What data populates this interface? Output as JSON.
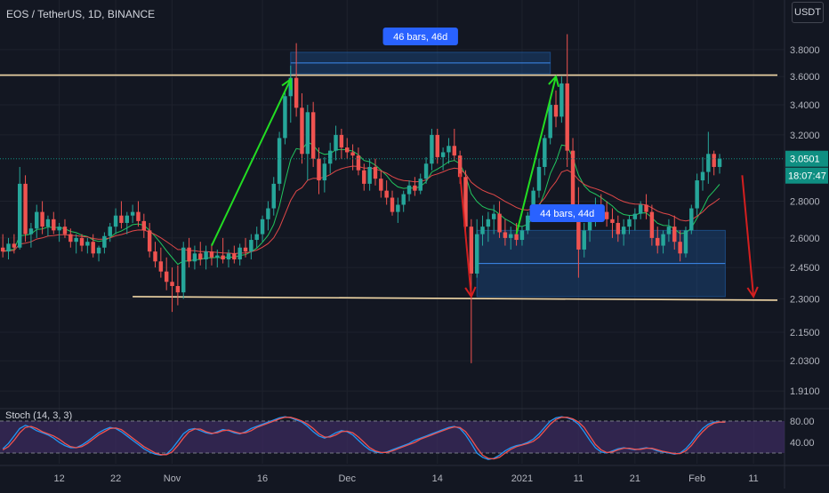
{
  "header": {
    "title": "EOS / TetherUS, 1D, BINANCE"
  },
  "currency_label": "USDT",
  "indicator": {
    "label": "Stoch (14, 3, 3)"
  },
  "colors": {
    "background": "#131722",
    "grid": "#1e222d",
    "text": "#b2b5be",
    "up": "#26a69a",
    "down": "#ef5350",
    "trendline": "#f2d8a7",
    "range_box": "#1e5aa0",
    "arrow_up": "#22dd22",
    "arrow_down": "#d41f1f",
    "price_tag": "#0f8f82",
    "stoch_k": "#2196f3",
    "stoch_d": "#ef5350",
    "stoch_band": "#3b2b5e"
  },
  "chart_data": [
    {
      "type": "candlestick",
      "title": "EOS / TetherUS, 1D, BINANCE",
      "y_scale": "log",
      "ylim": [
        1.85,
        4.2
      ],
      "y_ticks": [
        "3.8000",
        "3.6000",
        "3.4000",
        "3.2000",
        "2.8000",
        "2.6000",
        "2.4500",
        "2.3000",
        "2.1500",
        "2.0300",
        "1.9100"
      ],
      "x_ticks": [
        "12",
        "22",
        "Nov",
        "16",
        "Dec",
        "14",
        "2021",
        "11",
        "21",
        "Feb",
        "11"
      ],
      "x_tick_bar_index": [
        10,
        20,
        30,
        46,
        61,
        77,
        92,
        102,
        112,
        123,
        133
      ],
      "x_range_bars": [
        0,
        139
      ],
      "candles_ohlc": [
        [
          2.55,
          2.62,
          2.5,
          2.53
        ],
        [
          2.53,
          2.6,
          2.49,
          2.57
        ],
        [
          2.57,
          2.62,
          2.52,
          2.55
        ],
        [
          2.55,
          3.0,
          2.54,
          2.9
        ],
        [
          2.9,
          2.95,
          2.58,
          2.62
        ],
        [
          2.62,
          2.68,
          2.55,
          2.65
        ],
        [
          2.65,
          2.78,
          2.6,
          2.74
        ],
        [
          2.74,
          2.8,
          2.62,
          2.66
        ],
        [
          2.66,
          2.72,
          2.61,
          2.7
        ],
        [
          2.7,
          2.74,
          2.62,
          2.64
        ],
        [
          2.64,
          2.68,
          2.58,
          2.66
        ],
        [
          2.66,
          2.7,
          2.6,
          2.62
        ],
        [
          2.62,
          2.65,
          2.55,
          2.58
        ],
        [
          2.58,
          2.62,
          2.52,
          2.6
        ],
        [
          2.6,
          2.62,
          2.53,
          2.56
        ],
        [
          2.56,
          2.6,
          2.52,
          2.58
        ],
        [
          2.58,
          2.62,
          2.5,
          2.52
        ],
        [
          2.52,
          2.56,
          2.48,
          2.55
        ],
        [
          2.55,
          2.63,
          2.52,
          2.61
        ],
        [
          2.61,
          2.68,
          2.58,
          2.66
        ],
        [
          2.66,
          2.76,
          2.62,
          2.72
        ],
        [
          2.72,
          2.8,
          2.65,
          2.68
        ],
        [
          2.68,
          2.74,
          2.62,
          2.72
        ],
        [
          2.72,
          2.78,
          2.68,
          2.74
        ],
        [
          2.74,
          2.8,
          2.66,
          2.69
        ],
        [
          2.69,
          2.73,
          2.6,
          2.64
        ],
        [
          2.64,
          2.68,
          2.5,
          2.53
        ],
        [
          2.53,
          2.58,
          2.45,
          2.48
        ],
        [
          2.48,
          2.55,
          2.4,
          2.43
        ],
        [
          2.43,
          2.5,
          2.34,
          2.38
        ],
        [
          2.38,
          2.45,
          2.24,
          2.36
        ],
        [
          2.36,
          2.46,
          2.27,
          2.33
        ],
        [
          2.33,
          2.58,
          2.3,
          2.55
        ],
        [
          2.55,
          2.6,
          2.45,
          2.48
        ],
        [
          2.48,
          2.56,
          2.44,
          2.52
        ],
        [
          2.52,
          2.58,
          2.46,
          2.49
        ],
        [
          2.49,
          2.56,
          2.44,
          2.53
        ],
        [
          2.53,
          2.57,
          2.46,
          2.5
        ],
        [
          2.5,
          2.54,
          2.45,
          2.51
        ],
        [
          2.51,
          2.6,
          2.47,
          2.49
        ],
        [
          2.49,
          2.54,
          2.45,
          2.52
        ],
        [
          2.52,
          2.56,
          2.47,
          2.49
        ],
        [
          2.49,
          2.57,
          2.46,
          2.55
        ],
        [
          2.55,
          2.6,
          2.5,
          2.53
        ],
        [
          2.53,
          2.62,
          2.49,
          2.59
        ],
        [
          2.59,
          2.66,
          2.55,
          2.62
        ],
        [
          2.62,
          2.72,
          2.58,
          2.7
        ],
        [
          2.7,
          2.8,
          2.64,
          2.76
        ],
        [
          2.76,
          2.94,
          2.72,
          2.9
        ],
        [
          2.9,
          3.22,
          2.86,
          3.18
        ],
        [
          3.18,
          3.5,
          3.14,
          3.46
        ],
        [
          3.46,
          3.68,
          3.28,
          3.59
        ],
        [
          3.59,
          3.85,
          3.32,
          3.38
        ],
        [
          3.38,
          3.48,
          3.02,
          3.08
        ],
        [
          3.08,
          3.4,
          2.92,
          3.35
        ],
        [
          3.35,
          3.42,
          3.0,
          3.05
        ],
        [
          3.05,
          3.12,
          2.84,
          2.92
        ],
        [
          2.92,
          3.06,
          2.85,
          3.02
        ],
        [
          3.02,
          3.15,
          2.96,
          3.1
        ],
        [
          3.1,
          3.26,
          3.04,
          3.2
        ],
        [
          3.2,
          3.24,
          3.05,
          3.12
        ],
        [
          3.12,
          3.18,
          3.05,
          3.09
        ],
        [
          3.09,
          3.14,
          2.98,
          3.07
        ],
        [
          3.07,
          3.12,
          2.95,
          2.98
        ],
        [
          2.98,
          3.02,
          2.86,
          2.9
        ],
        [
          2.9,
          3.05,
          2.86,
          3.0
        ],
        [
          3.0,
          3.05,
          2.89,
          2.93
        ],
        [
          2.93,
          2.98,
          2.82,
          2.86
        ],
        [
          2.86,
          2.92,
          2.78,
          2.82
        ],
        [
          2.82,
          2.86,
          2.72,
          2.74
        ],
        [
          2.74,
          2.82,
          2.68,
          2.78
        ],
        [
          2.78,
          2.86,
          2.74,
          2.84
        ],
        [
          2.84,
          2.92,
          2.8,
          2.89
        ],
        [
          2.89,
          2.94,
          2.83,
          2.86
        ],
        [
          2.86,
          2.96,
          2.84,
          2.93
        ],
        [
          2.93,
          3.06,
          2.9,
          3.02
        ],
        [
          3.02,
          3.24,
          2.98,
          3.2
        ],
        [
          3.2,
          3.24,
          3.02,
          3.06
        ],
        [
          3.06,
          3.12,
          2.98,
          3.09
        ],
        [
          3.09,
          3.18,
          3.02,
          3.13
        ],
        [
          3.13,
          3.24,
          3.04,
          3.07
        ],
        [
          3.07,
          3.1,
          2.9,
          2.94
        ],
        [
          2.94,
          2.98,
          2.62,
          2.66
        ],
        [
          2.66,
          2.7,
          2.02,
          2.42
        ],
        [
          2.42,
          2.7,
          2.4,
          2.62
        ],
        [
          2.62,
          2.72,
          2.56,
          2.66
        ],
        [
          2.66,
          2.74,
          2.58,
          2.7
        ],
        [
          2.7,
          2.78,
          2.62,
          2.73
        ],
        [
          2.73,
          2.8,
          2.6,
          2.63
        ],
        [
          2.63,
          2.7,
          2.56,
          2.6
        ],
        [
          2.6,
          2.66,
          2.54,
          2.62
        ],
        [
          2.62,
          2.68,
          2.56,
          2.59
        ],
        [
          2.59,
          2.66,
          2.56,
          2.64
        ],
        [
          2.64,
          2.74,
          2.62,
          2.72
        ],
        [
          2.72,
          2.88,
          2.7,
          2.86
        ],
        [
          2.86,
          3.05,
          2.82,
          3.0
        ],
        [
          3.0,
          3.2,
          2.95,
          3.18
        ],
        [
          3.18,
          3.44,
          3.14,
          3.4
        ],
        [
          3.4,
          3.5,
          3.25,
          3.32
        ],
        [
          3.32,
          3.6,
          3.28,
          3.55
        ],
        [
          3.55,
          3.92,
          3.0,
          3.1
        ],
        [
          3.1,
          3.18,
          2.72,
          2.76
        ],
        [
          2.76,
          2.88,
          2.4,
          2.54
        ],
        [
          2.54,
          2.68,
          2.5,
          2.64
        ],
        [
          2.64,
          2.78,
          2.58,
          2.72
        ],
        [
          2.72,
          2.82,
          2.66,
          2.78
        ],
        [
          2.78,
          2.84,
          2.7,
          2.74
        ],
        [
          2.74,
          2.8,
          2.66,
          2.7
        ],
        [
          2.7,
          2.76,
          2.6,
          2.68
        ],
        [
          2.68,
          2.72,
          2.58,
          2.62
        ],
        [
          2.62,
          2.7,
          2.56,
          2.66
        ],
        [
          2.66,
          2.72,
          2.62,
          2.7
        ],
        [
          2.7,
          2.76,
          2.64,
          2.73
        ],
        [
          2.73,
          2.8,
          2.7,
          2.78
        ],
        [
          2.78,
          2.84,
          2.7,
          2.74
        ],
        [
          2.74,
          2.78,
          2.56,
          2.6
        ],
        [
          2.6,
          2.66,
          2.52,
          2.56
        ],
        [
          2.56,
          2.64,
          2.52,
          2.62
        ],
        [
          2.62,
          2.7,
          2.58,
          2.66
        ],
        [
          2.66,
          2.72,
          2.54,
          2.58
        ],
        [
          2.58,
          2.64,
          2.48,
          2.52
        ],
        [
          2.52,
          2.66,
          2.5,
          2.64
        ],
        [
          2.64,
          2.78,
          2.62,
          2.76
        ],
        [
          2.76,
          2.96,
          2.72,
          2.92
        ],
        [
          2.92,
          3.06,
          2.86,
          2.97
        ],
        [
          2.97,
          3.22,
          2.9,
          3.08
        ],
        [
          3.08,
          3.1,
          2.95,
          3.0
        ],
        [
          3.0,
          3.08,
          2.96,
          3.05
        ]
      ],
      "last_price": "3.0501",
      "countdown": "18:07:47",
      "annotations": {
        "horizontal_levels": [
          3.61,
          2.31
        ],
        "range_box_1": {
          "label": "46 bars, 46d",
          "bar_start": 51,
          "bar_end": 97,
          "top": 3.78,
          "bottom": 3.62
        },
        "range_box_2": {
          "label": "44 bars, 44d",
          "bar_start": 84,
          "bar_end": 128,
          "top": 2.64,
          "bottom": 2.31
        }
      }
    },
    {
      "type": "line",
      "title": "Stoch (14, 3, 3)",
      "ylim": [
        0,
        100
      ],
      "y_ticks": [
        "80.00",
        "40.00"
      ],
      "band": [
        20,
        80
      ],
      "series": [
        {
          "values": [
            28,
            38,
            52,
            66,
            72,
            68,
            62,
            58,
            54,
            48,
            40,
            34,
            30,
            30,
            35,
            42,
            50,
            58,
            64,
            68,
            66,
            60,
            52,
            44,
            36,
            28,
            22,
            18,
            16,
            18,
            28,
            42,
            56,
            64,
            66,
            62,
            58,
            56,
            60,
            64,
            62,
            58,
            56,
            60,
            66,
            70,
            74,
            78,
            82,
            86,
            88,
            86,
            82,
            78,
            70,
            60,
            52,
            48,
            52,
            58,
            62,
            60,
            54,
            44,
            34,
            26,
            22,
            20,
            22,
            26,
            30,
            34,
            38,
            44,
            48,
            52,
            56,
            60,
            64,
            68,
            70,
            66,
            54,
            38,
            20,
            12,
            8,
            10,
            16,
            24,
            30,
            34,
            36,
            40,
            46,
            56,
            68,
            80,
            86,
            88,
            86,
            82,
            74,
            60,
            44,
            30,
            22,
            20,
            24,
            28,
            30,
            28,
            26,
            28,
            30,
            28,
            24,
            22,
            20,
            18,
            20,
            28,
            40,
            54,
            66,
            74,
            78,
            78,
            78
          ]
        },
        {
          "values": [
            26,
            32,
            44,
            58,
            68,
            70,
            66,
            60,
            56,
            52,
            46,
            38,
            32,
            30,
            32,
            38,
            46,
            54,
            60,
            66,
            67,
            64,
            56,
            48,
            40,
            32,
            26,
            20,
            17,
            17,
            22,
            34,
            48,
            60,
            65,
            65,
            60,
            57,
            58,
            62,
            63,
            60,
            57,
            58,
            62,
            68,
            72,
            76,
            80,
            84,
            87,
            87,
            84,
            80,
            74,
            66,
            56,
            50,
            50,
            54,
            60,
            61,
            58,
            50,
            40,
            30,
            24,
            21,
            21,
            24,
            28,
            32,
            36,
            40,
            46,
            50,
            54,
            58,
            62,
            66,
            69,
            68,
            60,
            46,
            30,
            16,
            10,
            9,
            12,
            20,
            27,
            32,
            35,
            38,
            42,
            50,
            62,
            74,
            83,
            87,
            87,
            84,
            78,
            68,
            52,
            36,
            26,
            21,
            22,
            26,
            29,
            29,
            27,
            27,
            29,
            29,
            26,
            23,
            21,
            19,
            19,
            24,
            34,
            48,
            60,
            70,
            76,
            78,
            78
          ]
        }
      ]
    }
  ]
}
